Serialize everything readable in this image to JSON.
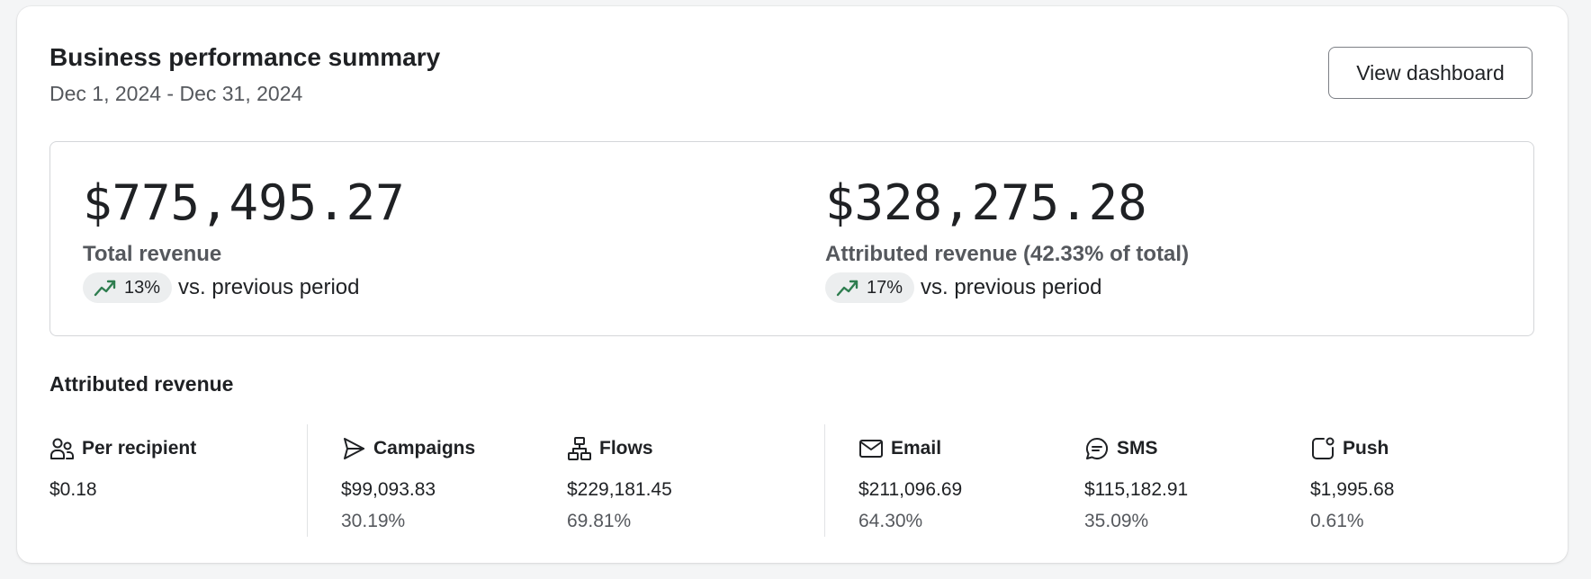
{
  "header": {
    "title": "Business performance summary",
    "date_range": "Dec 1, 2024 - Dec 31, 2024",
    "view_button_label": "View dashboard"
  },
  "summary": {
    "total": {
      "value": "$775,495.27",
      "label": "Total revenue",
      "change": "13%",
      "comparison": "vs. previous period",
      "trend_icon": "trend-up-icon"
    },
    "attributed": {
      "value": "$328,275.28",
      "label": "Attributed revenue (42.33% of total)",
      "change": "17%",
      "comparison": "vs. previous period",
      "trend_icon": "trend-up-icon"
    }
  },
  "breakdown": {
    "title": "Attributed revenue",
    "items": [
      {
        "name": "Per recipient",
        "icon": "users-icon",
        "value": "$0.18",
        "percent": ""
      },
      {
        "name": "Campaigns",
        "icon": "send-icon",
        "value": "$99,093.83",
        "percent": "30.19%"
      },
      {
        "name": "Flows",
        "icon": "flow-icon",
        "value": "$229,181.45",
        "percent": "69.81%"
      },
      {
        "name": "Email",
        "icon": "mail-icon",
        "value": "$211,096.69",
        "percent": "64.30%"
      },
      {
        "name": "SMS",
        "icon": "sms-icon",
        "value": "$115,182.91",
        "percent": "35.09%"
      },
      {
        "name": "Push",
        "icon": "push-icon",
        "value": "$1,995.68",
        "percent": "0.61%"
      }
    ]
  },
  "colors": {
    "trend_up": "#2e7d4f",
    "text_primary": "#1f2124",
    "text_secondary": "#55585d",
    "border": "#d4d6d9",
    "pill_bg": "#eceeef"
  }
}
